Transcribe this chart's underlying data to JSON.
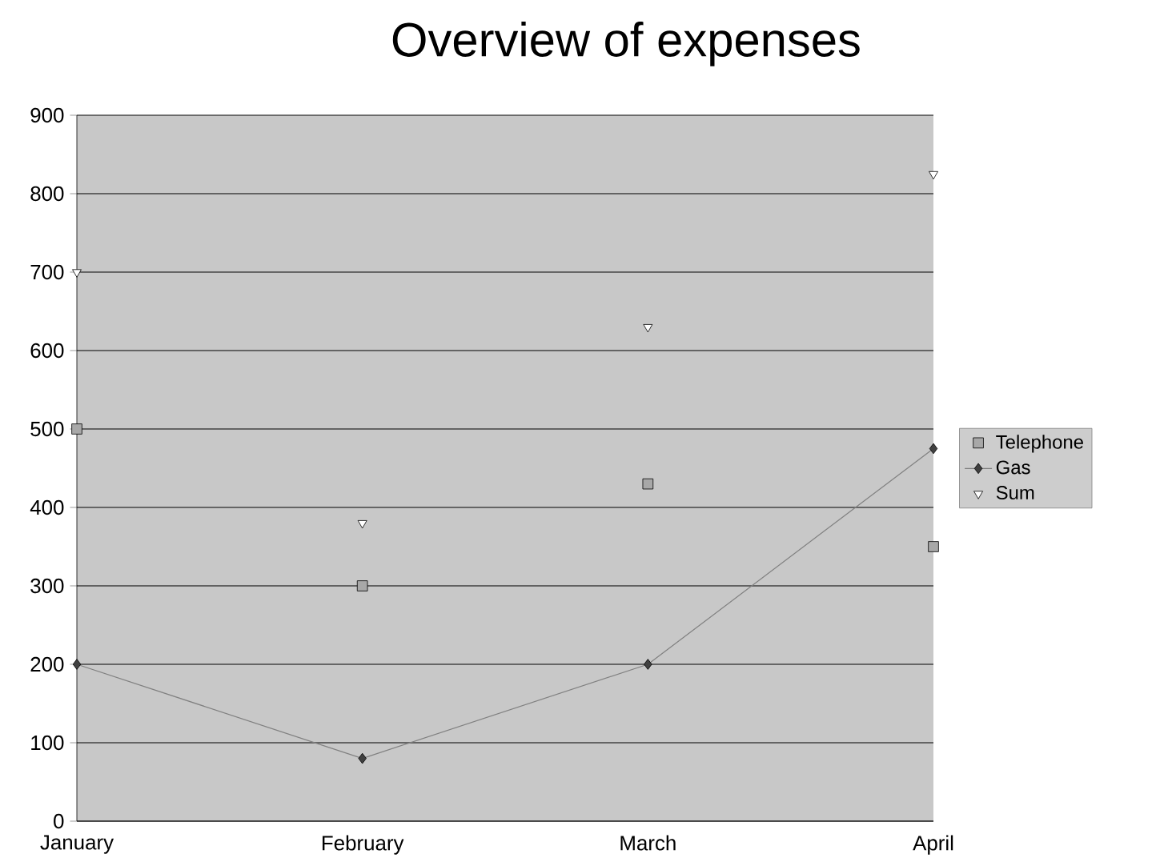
{
  "chart_data": {
    "type": "line",
    "title": "Overview of expenses",
    "categories": [
      "January",
      "February",
      "March",
      "April"
    ],
    "series": [
      {
        "name": "Telephone",
        "type": "scatter",
        "marker": "square",
        "color": "#a8a8a8",
        "values": [
          500,
          300,
          430,
          350
        ]
      },
      {
        "name": "Gas",
        "marker": "diamond",
        "color": "#404040",
        "values": [
          200,
          80,
          200,
          475
        ]
      },
      {
        "name": "Sum",
        "type": "scatter",
        "marker": "triangle",
        "color": "#ffffff",
        "values": [
          700,
          380,
          630,
          825
        ]
      }
    ],
    "ylim": [
      0,
      900
    ],
    "yticks": [
      0,
      100,
      200,
      300,
      400,
      500,
      600,
      700,
      800,
      900
    ],
    "grid": "y",
    "legend": "right"
  }
}
